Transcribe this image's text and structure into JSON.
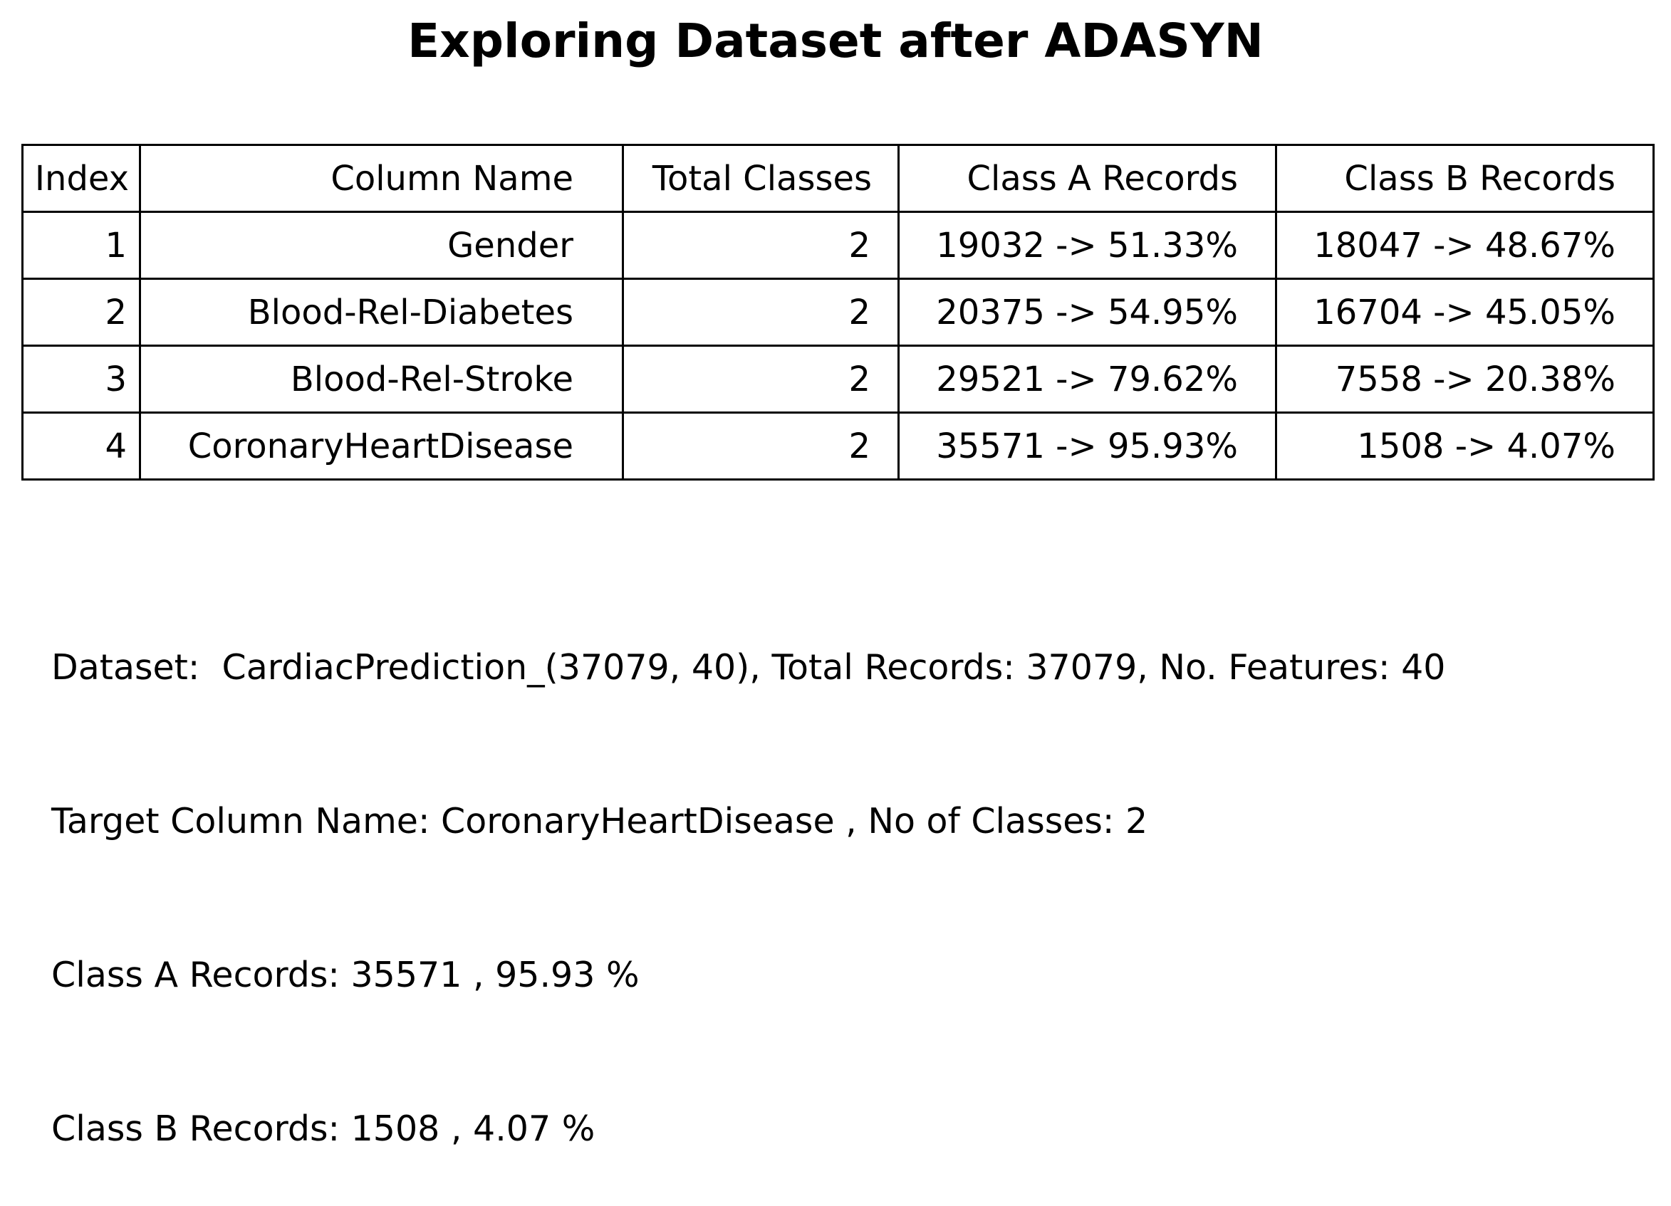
{
  "title": "Exploring Dataset after ADASYN",
  "table": {
    "headers": [
      "Index",
      "Column Name",
      "Total Classes",
      "Class A Records",
      "Class B Records"
    ],
    "rows": [
      [
        "1",
        "Gender",
        "2",
        "19032 -> 51.33%",
        "18047 -> 48.67%"
      ],
      [
        "2",
        "Blood-Rel-Diabetes",
        "2",
        "20375 -> 54.95%",
        "16704 -> 45.05%"
      ],
      [
        "3",
        "Blood-Rel-Stroke",
        "2",
        "29521 -> 79.62%",
        "7558 -> 20.38%"
      ],
      [
        "4",
        "CoronaryHeartDisease",
        "2",
        "35571 -> 95.93%",
        "1508 -> 4.07%"
      ]
    ]
  },
  "summary": {
    "dataset_line": "Dataset:  CardiacPrediction_(37079, 40), Total Records: 37079, No. Features: 40",
    "target_line": "Target Column Name: CoronaryHeartDisease , No of Classes: 2",
    "class_a_line": "Class A Records: 35571 , 95.93 %",
    "class_b_line": "Class B Records: 1508 , 4.07 %"
  }
}
